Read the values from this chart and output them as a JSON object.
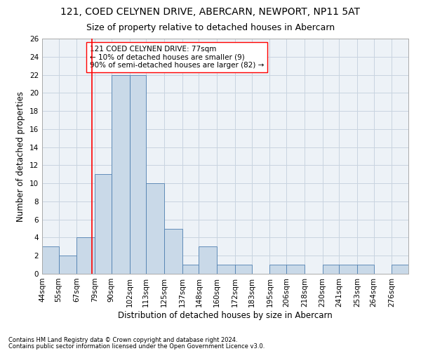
{
  "title": "121, COED CELYNEN DRIVE, ABERCARN, NEWPORT, NP11 5AT",
  "subtitle": "Size of property relative to detached houses in Abercarn",
  "xlabel": "Distribution of detached houses by size in Abercarn",
  "ylabel": "Number of detached properties",
  "bin_labels": [
    "44sqm",
    "55sqm",
    "67sqm",
    "79sqm",
    "90sqm",
    "102sqm",
    "113sqm",
    "125sqm",
    "137sqm",
    "148sqm",
    "160sqm",
    "172sqm",
    "183sqm",
    "195sqm",
    "206sqm",
    "218sqm",
    "230sqm",
    "241sqm",
    "253sqm",
    "264sqm",
    "276sqm"
  ],
  "bin_edges": [
    44,
    55,
    67,
    79,
    90,
    102,
    113,
    125,
    137,
    148,
    160,
    172,
    183,
    195,
    206,
    218,
    230,
    241,
    253,
    264,
    276,
    287
  ],
  "bar_values": [
    3,
    2,
    4,
    11,
    22,
    22,
    10,
    5,
    1,
    3,
    1,
    1,
    0,
    1,
    1,
    0,
    1,
    1,
    1,
    0,
    1
  ],
  "bar_color": "#c9d9e8",
  "bar_edgecolor": "#4f7fb0",
  "redline_x": 77,
  "annotation_line1": "121 COED CELYNEN DRIVE: 77sqm",
  "annotation_line2": "← 10% of detached houses are smaller (9)",
  "annotation_line3": "90% of semi-detached houses are larger (82) →",
  "ylim": [
    0,
    26
  ],
  "yticks": [
    0,
    2,
    4,
    6,
    8,
    10,
    12,
    14,
    16,
    18,
    20,
    22,
    24,
    26
  ],
  "footer1": "Contains HM Land Registry data © Crown copyright and database right 2024.",
  "footer2": "Contains public sector information licensed under the Open Government Licence v3.0.",
  "bg_color": "#edf2f7",
  "grid_color": "#c8d4e0",
  "title_fontsize": 10,
  "subtitle_fontsize": 9,
  "axis_label_fontsize": 8.5,
  "tick_fontsize": 7.5,
  "annotation_fontsize": 7.5,
  "footer_fontsize": 6
}
